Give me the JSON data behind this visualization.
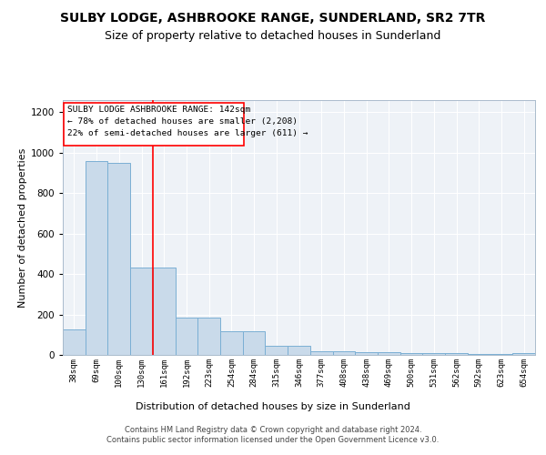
{
  "title": "SULBY LODGE, ASHBROOKE RANGE, SUNDERLAND, SR2 7TR",
  "subtitle": "Size of property relative to detached houses in Sunderland",
  "xlabel": "Distribution of detached houses by size in Sunderland",
  "ylabel": "Number of detached properties",
  "categories": [
    "38sqm",
    "69sqm",
    "100sqm",
    "130sqm",
    "161sqm",
    "192sqm",
    "223sqm",
    "254sqm",
    "284sqm",
    "315sqm",
    "346sqm",
    "377sqm",
    "408sqm",
    "438sqm",
    "469sqm",
    "500sqm",
    "531sqm",
    "562sqm",
    "592sqm",
    "623sqm",
    "654sqm"
  ],
  "heights": [
    125,
    960,
    950,
    430,
    430,
    185,
    185,
    115,
    115,
    45,
    45,
    20,
    20,
    15,
    15,
    10,
    10,
    10,
    5,
    5,
    10
  ],
  "bar_color": "#c9daea",
  "bar_edge_color": "#7aafd4",
  "red_line_index": 3.5,
  "annotation_lines": [
    "SULBY LODGE ASHBROOKE RANGE: 142sqm",
    "← 78% of detached houses are smaller (2,208)",
    "22% of semi-detached houses are larger (611) →"
  ],
  "footer": "Contains HM Land Registry data © Crown copyright and database right 2024.\nContains public sector information licensed under the Open Government Licence v3.0.",
  "ylim": [
    0,
    1260
  ],
  "yticks": [
    0,
    200,
    400,
    600,
    800,
    1000,
    1200
  ],
  "bg_color": "#eef2f7",
  "grid_color": "#ffffff",
  "title_fontsize": 10,
  "subtitle_fontsize": 9,
  "xlabel_fontsize": 8,
  "ylabel_fontsize": 8
}
